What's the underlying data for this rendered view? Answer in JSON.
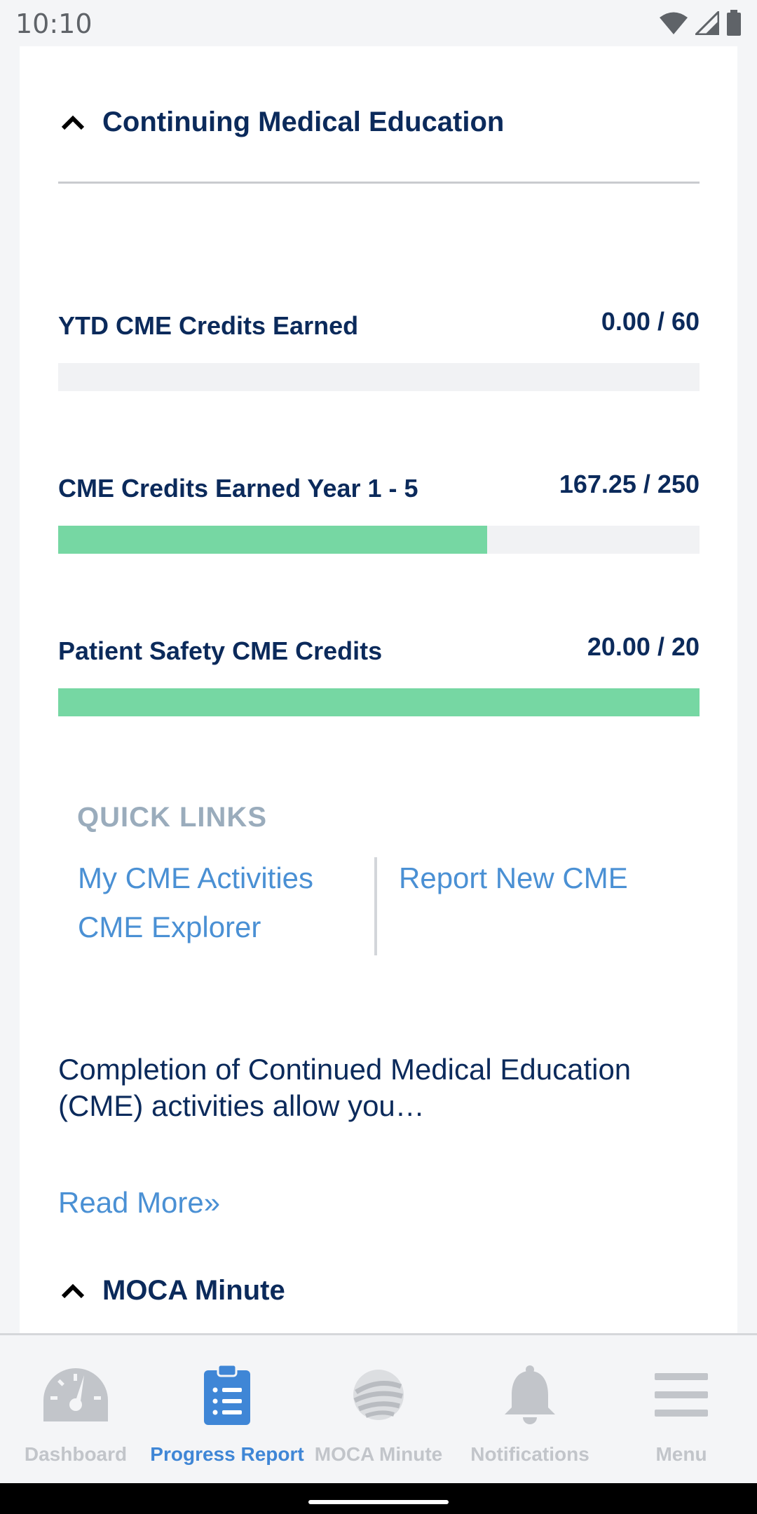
{
  "status_bar": {
    "time": "10:10",
    "icons": [
      "wifi-icon",
      "signal-icon",
      "battery-icon"
    ]
  },
  "cme_section": {
    "title": "Continuing Medical Education",
    "progress": [
      {
        "label": "YTD CME Credits Earned",
        "value": "0.00 / 60",
        "fraction": 0.0
      },
      {
        "label": "CME Credits Earned Year 1 - 5",
        "value": "167.25 / 250",
        "fraction": 0.669
      },
      {
        "label": "Patient Safety CME Credits",
        "value": "20.00 / 20",
        "fraction": 1.0
      }
    ]
  },
  "quick_links": {
    "title": "QUICK LINKS",
    "my_cme_activities": "My CME Activities",
    "cme_explorer": "CME Explorer",
    "report_new_cme": "Report New CME"
  },
  "description": {
    "text": "Completion of Continued Medical Education (CME) activities allow you…",
    "read_more": "Read More»"
  },
  "moca_section": {
    "title": "MOCA Minute"
  },
  "tab_bar": {
    "tabs": [
      {
        "label": "Dashboard",
        "icon": "speedometer-icon",
        "active": false
      },
      {
        "label": "Progress Report",
        "icon": "clipboard-list-icon",
        "active": true
      },
      {
        "label": "MOCA Minute",
        "icon": "globe-logo-icon",
        "active": false
      },
      {
        "label": "Notifications",
        "icon": "bell-icon",
        "active": false
      },
      {
        "label": "Menu",
        "icon": "hamburger-menu-icon",
        "active": false
      }
    ]
  },
  "colors": {
    "navy": "#0b2a5b",
    "link_blue": "#4a90d4",
    "progress_green": "#76d7a3",
    "active_tab": "#3f86d6",
    "inactive_tab": "#c2c5ca"
  }
}
